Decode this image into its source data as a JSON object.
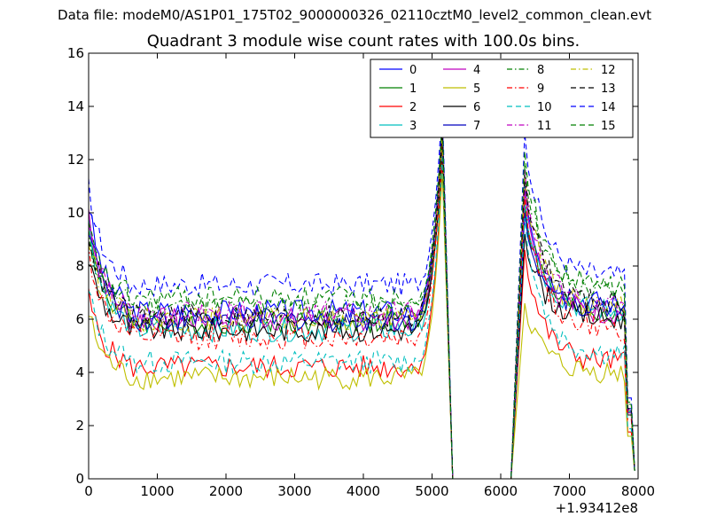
{
  "header": {
    "suptitle": "Data file: modeM0/AS1P01_175T02_9000000326_02110cztM0_level2_common_clean.evt"
  },
  "chart_data": {
    "type": "line",
    "title": "Quadrant 3 module wise count rates with 100.0s bins.",
    "xlabel": "",
    "ylabel": "",
    "x_offset_label": "+1.93412e8",
    "xlim": [
      0,
      8000
    ],
    "ylim": [
      0,
      16
    ],
    "xticks": [
      0,
      1000,
      2000,
      3000,
      4000,
      5000,
      6000,
      7000,
      8000
    ],
    "yticks": [
      0,
      2,
      4,
      6,
      8,
      10,
      12,
      14,
      16
    ],
    "grid": false,
    "legend_position": "top-right",
    "gap_range": [
      5300,
      6200
    ],
    "series": [
      {
        "name": "0",
        "color": "#0000ff",
        "dash": "solid",
        "base": 6.3,
        "start": 10.3,
        "peak1": 13.3,
        "peak2": 11.0,
        "end_level": 6.6
      },
      {
        "name": "1",
        "color": "#008000",
        "dash": "solid",
        "base": 5.9,
        "start": 9.2,
        "peak1": 12.6,
        "peak2": 10.2,
        "end_level": 6.2
      },
      {
        "name": "2",
        "color": "#ff0000",
        "dash": "solid",
        "base": 4.2,
        "start": 6.8,
        "peak1": 12.0,
        "peak2": 8.6,
        "end_level": 4.4
      },
      {
        "name": "3",
        "color": "#00bfbf",
        "dash": "solid",
        "base": 5.6,
        "start": 9.6,
        "peak1": 13.0,
        "peak2": 10.4,
        "end_level": 6.3
      },
      {
        "name": "4",
        "color": "#bf00bf",
        "dash": "solid",
        "base": 6.0,
        "start": 10.1,
        "peak1": 13.1,
        "peak2": 10.9,
        "end_level": 6.2
      },
      {
        "name": "5",
        "color": "#bfbf00",
        "dash": "solid",
        "base": 3.8,
        "start": 6.2,
        "peak1": 11.5,
        "peak2": 6.6,
        "end_level": 4.0
      },
      {
        "name": "6",
        "color": "#000000",
        "dash": "solid",
        "base": 5.6,
        "start": 8.3,
        "peak1": 12.4,
        "peak2": 9.2,
        "end_level": 6.0
      },
      {
        "name": "7",
        "color": "#0000bf",
        "dash": "solid",
        "base": 6.0,
        "start": 9.6,
        "peak1": 13.6,
        "peak2": 10.0,
        "end_level": 6.4
      },
      {
        "name": "8",
        "color": "#008000",
        "dash": "dashdot",
        "base": 6.5,
        "start": 9.0,
        "peak1": 13.0,
        "peak2": 11.8,
        "end_level": 7.0
      },
      {
        "name": "9",
        "color": "#ff0000",
        "dash": "dashdot",
        "base": 5.3,
        "start": 8.6,
        "peak1": 12.8,
        "peak2": 10.6,
        "end_level": 5.6
      },
      {
        "name": "10",
        "color": "#00bfbf",
        "dash": "dashed",
        "base": 4.4,
        "start": 7.0,
        "peak1": 12.2,
        "peak2": 9.8,
        "end_level": 4.7
      },
      {
        "name": "11",
        "color": "#bf00bf",
        "dash": "dashdot",
        "base": 6.2,
        "start": 9.6,
        "peak1": 13.2,
        "peak2": 11.6,
        "end_level": 6.5
      },
      {
        "name": "12",
        "color": "#bfbf00",
        "dash": "dashdot",
        "base": 6.0,
        "start": 9.0,
        "peak1": 12.9,
        "peak2": 11.3,
        "end_level": 6.4
      },
      {
        "name": "13",
        "color": "#000000",
        "dash": "dashed",
        "base": 6.1,
        "start": 9.3,
        "peak1": 13.1,
        "peak2": 11.4,
        "end_level": 6.6
      },
      {
        "name": "14",
        "color": "#0000ff",
        "dash": "dashed",
        "base": 7.3,
        "start": 10.9,
        "peak1": 14.1,
        "peak2": 13.0,
        "end_level": 7.6
      },
      {
        "name": "15",
        "color": "#008000",
        "dash": "dashed",
        "base": 6.8,
        "start": 9.4,
        "peak1": 13.5,
        "peak2": 12.3,
        "end_level": 7.2
      }
    ]
  }
}
